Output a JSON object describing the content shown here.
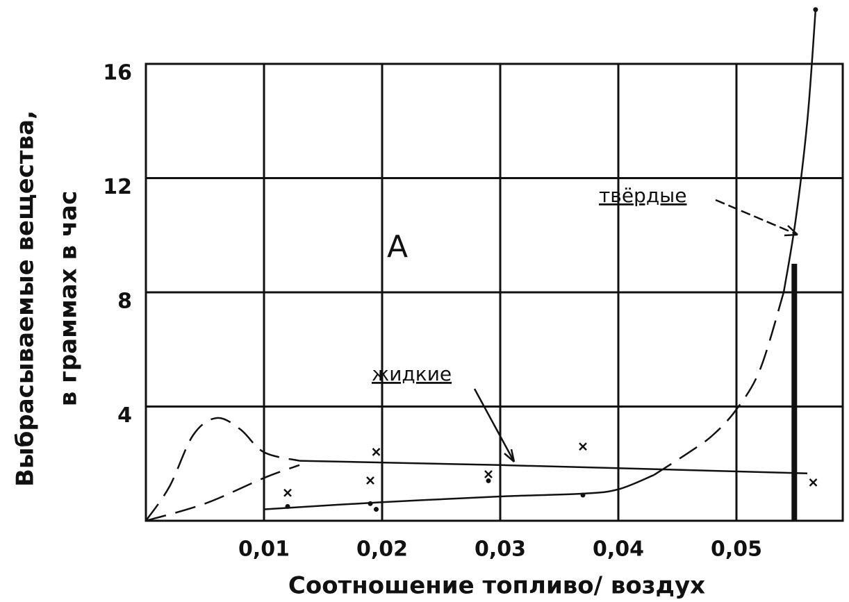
{
  "chart_data": {
    "type": "line",
    "xlabel": "Соотношение топливо/ воздух",
    "ylabel": [
      "Выбрасываемые вещества,",
      "в граммах в час"
    ],
    "xlim": [
      0,
      0.059
    ],
    "ylim": [
      0,
      16
    ],
    "xticks": [
      {
        "value": 0.01,
        "label": "0,01"
      },
      {
        "value": 0.02,
        "label": "0,02"
      },
      {
        "value": 0.03,
        "label": "0,03"
      },
      {
        "value": 0.04,
        "label": "0,04"
      },
      {
        "value": 0.05,
        "label": "0,05"
      }
    ],
    "yticks": [
      4,
      8,
      12,
      16
    ],
    "grid": true,
    "color": "#111111",
    "series": [
      {
        "x": [
          0.013,
          0.03,
          0.056
        ],
        "values": [
          2.1,
          1.95,
          1.66
        ],
        "dash": false
      },
      {
        "x": [
          0,
          0.002,
          0.004,
          0.006,
          0.008,
          0.01,
          0.013
        ],
        "values": [
          0,
          1.2,
          3.0,
          3.6,
          3.2,
          2.4,
          2.1
        ],
        "dash": true
      },
      {
        "x": [
          0,
          0.005,
          0.01,
          0.013
        ],
        "values": [
          0,
          0.6,
          1.5,
          1.95
        ],
        "dash": true
      },
      {
        "x": [
          0.01,
          0.02,
          0.03,
          0.037,
          0.04,
          0.043
        ],
        "values": [
          0.4,
          0.65,
          0.85,
          0.95,
          1.1,
          1.6
        ],
        "dash": false
      },
      {
        "x": [
          0.043,
          0.046,
          0.048,
          0.05,
          0.052,
          0.054
        ],
        "values": [
          1.6,
          2.4,
          3.0,
          3.9,
          5.3,
          8.0
        ],
        "dash": true
      },
      {
        "x": [
          0.054,
          0.055,
          0.056,
          0.0567
        ],
        "values": [
          8.0,
          10.5,
          14,
          17.9
        ],
        "dash": false
      }
    ],
    "crosses": {
      "x": [
        0.012,
        0.019,
        0.0195,
        0.029,
        0.037,
        0.0565
      ],
      "values": [
        0.98,
        1.41,
        2.41,
        1.63,
        2.6,
        1.34
      ]
    },
    "dots": {
      "x": [
        0.012,
        0.019,
        0.0195,
        0.029,
        0.037,
        0.0567
      ],
      "values": [
        0.5,
        0.6,
        0.4,
        1.4,
        0.9,
        17.9
      ]
    },
    "bar": {
      "x": 0.0549,
      "value": 9.0
    },
    "annotations": [
      "A",
      "жидкие",
      "твёрдые"
    ]
  }
}
